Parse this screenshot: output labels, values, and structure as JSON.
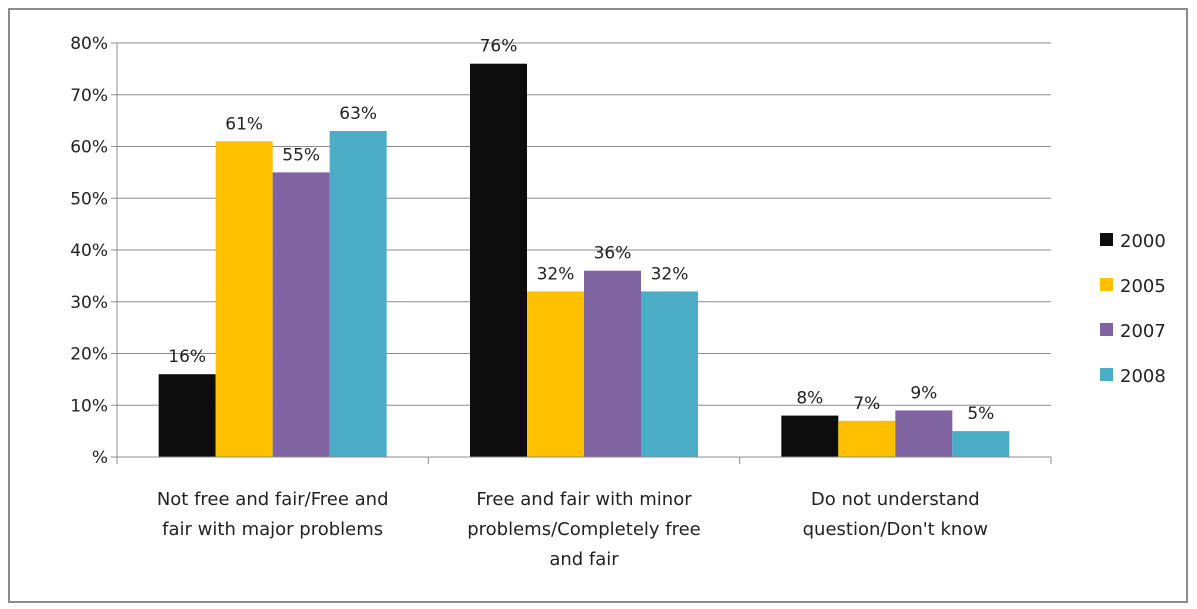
{
  "chart_data": {
    "type": "bar",
    "categories": [
      [
        "Not free and fair/Free and",
        "fair with major problems"
      ],
      [
        "Free and fair with minor",
        "problems/Completely free",
        "and fair"
      ],
      [
        "Do not understand",
        "question/Don't know"
      ]
    ],
    "series": [
      {
        "name": "2000",
        "color": "#0d0d0d",
        "values": [
          16,
          76,
          8
        ],
        "labels": [
          "16%",
          "76%",
          "8%"
        ]
      },
      {
        "name": "2005",
        "color": "#ffc000",
        "values": [
          61,
          32,
          7
        ],
        "labels": [
          "61%",
          "32%",
          "7%"
        ]
      },
      {
        "name": "2007",
        "color": "#8064a2",
        "values": [
          55,
          36,
          9
        ],
        "labels": [
          "55%",
          "36%",
          "9%"
        ]
      },
      {
        "name": "2008",
        "color": "#4bacc6",
        "values": [
          63,
          32,
          5
        ],
        "labels": [
          "63%",
          "32%",
          "5%"
        ]
      }
    ],
    "ylim": [
      0,
      80
    ],
    "yticks": [
      0,
      10,
      20,
      30,
      40,
      50,
      60,
      70,
      80
    ],
    "ytick_labels": [
      "%",
      "10%",
      "20%",
      "30%",
      "40%",
      "50%",
      "60%",
      "70%",
      "80%"
    ],
    "grid": true,
    "legend_position": "right"
  }
}
